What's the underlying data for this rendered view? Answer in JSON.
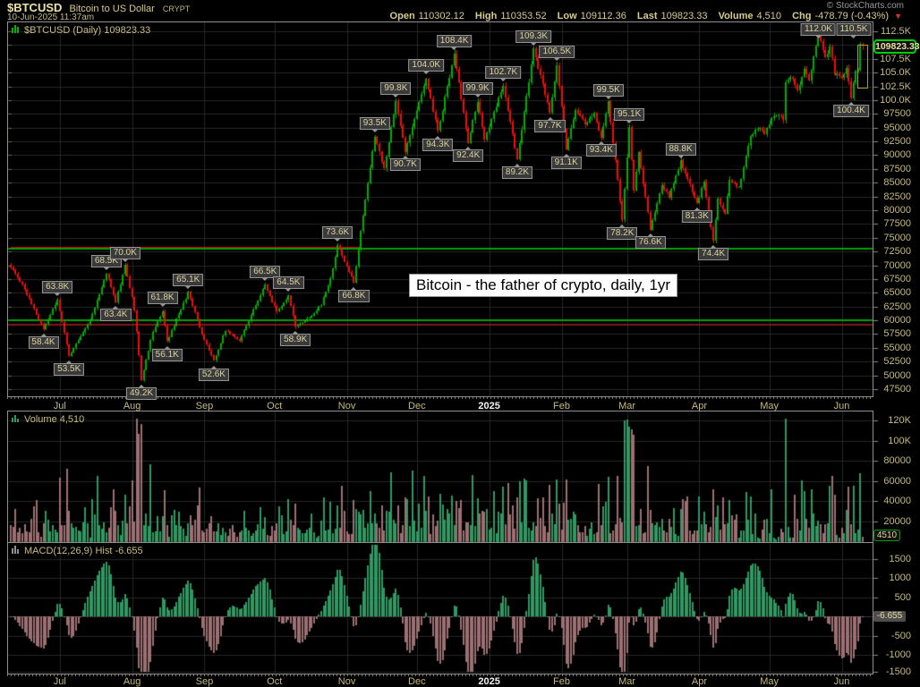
{
  "header": {
    "ticker": "$BTCUSD",
    "name": "Bitcoin to US Dollar",
    "exchange": "CRYPT",
    "copyright": "© StockCharts.com",
    "datetime": "10-Jun-2025 11:37am",
    "quote": {
      "open_label": "Open",
      "open": "110302.12",
      "high_label": "High",
      "high": "110353.52",
      "low_label": "Low",
      "low": "109112.36",
      "last_label": "Last",
      "last": "109823.33",
      "volume_label": "Volume",
      "volume": "4,510",
      "chg_label": "Chg",
      "chg": "-478.79 (-0.43%)"
    }
  },
  "main_chart": {
    "title": "$BTCUSD (Daily) 109823.33",
    "annotation": "Bitcoin - the father of crypto, daily, 1yr",
    "last_price_tag": "109823.33"
  },
  "volume_panel": {
    "title": "Volume 4,510",
    "tag": "4510"
  },
  "macd_panel": {
    "title": "MACD(12,26,9) Hist -6.655",
    "tag": "-6.655"
  },
  "colors": {
    "candle_up": "#00AE00",
    "candle_down": "#EF0D0D",
    "vol_up": "#2E9A62",
    "vol_down": "#9C6F72",
    "grid": "#272727",
    "axis_text": "#C6BA7E",
    "hline_green": "#00A200",
    "hline_red": "#D40000",
    "hline_darkred": "#7E1A1A",
    "tag_border_green": "#00CE00"
  },
  "chart_data": {
    "type": "candlestick",
    "symbol": "$BTCUSD",
    "period": "Daily",
    "range": "1yr",
    "panels": [
      "price",
      "volume",
      "macd_histogram"
    ],
    "price_axis": {
      "min": 47500,
      "max": 112500,
      "tick": 2500,
      "labels": [
        "112.5K",
        "110.0K",
        "107.5K",
        "105.0K",
        "102.5K",
        "100.0K",
        "97500",
        "95000",
        "92500",
        "90000",
        "87500",
        "85000",
        "82500",
        "80000",
        "77500",
        "75000",
        "72500",
        "70000",
        "67500",
        "65000",
        "62500",
        "60000",
        "57500",
        "55000",
        "52500",
        "50000",
        "47500"
      ]
    },
    "months": [
      {
        "label": "Jul",
        "day": 21
      },
      {
        "label": "Aug",
        "day": 52
      },
      {
        "label": "Sep",
        "day": 83
      },
      {
        "label": "Oct",
        "day": 113
      },
      {
        "label": "Nov",
        "day": 144
      },
      {
        "label": "Dec",
        "day": 174
      },
      {
        "label": "2025",
        "day": 205,
        "bright": true
      },
      {
        "label": "Feb",
        "day": 236
      },
      {
        "label": "Mar",
        "day": 264
      },
      {
        "label": "Apr",
        "day": 295
      },
      {
        "label": "May",
        "day": 325
      },
      {
        "label": "Jun",
        "day": 356
      }
    ],
    "price_anchors": [
      [
        0,
        69600
      ],
      [
        5,
        66500
      ],
      [
        14,
        58400
      ],
      [
        20,
        63800
      ],
      [
        25,
        53500
      ],
      [
        34,
        60000
      ],
      [
        41,
        68500
      ],
      [
        45,
        63400
      ],
      [
        49,
        70000
      ],
      [
        53,
        62000
      ],
      [
        56,
        49200
      ],
      [
        61,
        58000
      ],
      [
        65,
        61800
      ],
      [
        67,
        56100
      ],
      [
        76,
        65100
      ],
      [
        82,
        57500
      ],
      [
        87,
        52600
      ],
      [
        92,
        58200
      ],
      [
        98,
        56300
      ],
      [
        109,
        66500
      ],
      [
        114,
        61500
      ],
      [
        119,
        64500
      ],
      [
        122,
        58900
      ],
      [
        128,
        60500
      ],
      [
        133,
        63000
      ],
      [
        137,
        67500
      ],
      [
        140,
        73600
      ],
      [
        147,
        66800
      ],
      [
        150,
        76000
      ],
      [
        156,
        93500
      ],
      [
        160,
        87500
      ],
      [
        165,
        99800
      ],
      [
        169,
        90700
      ],
      [
        178,
        104000
      ],
      [
        183,
        94300
      ],
      [
        190,
        108400
      ],
      [
        196,
        92400
      ],
      [
        200,
        99900
      ],
      [
        203,
        93000
      ],
      [
        211,
        102700
      ],
      [
        217,
        89200
      ],
      [
        224,
        109300
      ],
      [
        231,
        97700
      ],
      [
        234,
        106500
      ],
      [
        238,
        91100
      ],
      [
        242,
        98500
      ],
      [
        246,
        95500
      ],
      [
        250,
        97500
      ],
      [
        253,
        93400
      ],
      [
        256,
        99500
      ],
      [
        262,
        78200
      ],
      [
        265,
        95100
      ],
      [
        267,
        83500
      ],
      [
        269,
        90500
      ],
      [
        274,
        76600
      ],
      [
        279,
        84500
      ],
      [
        282,
        82500
      ],
      [
        287,
        88800
      ],
      [
        294,
        81300
      ],
      [
        297,
        85200
      ],
      [
        301,
        74400
      ],
      [
        303,
        82000
      ],
      [
        306,
        79500
      ],
      [
        308,
        85500
      ],
      [
        312,
        84000
      ],
      [
        317,
        93500
      ],
      [
        320,
        95000
      ],
      [
        323,
        94000
      ],
      [
        326,
        96800
      ],
      [
        329,
        97000
      ],
      [
        331,
        96500
      ],
      [
        332,
        103300
      ],
      [
        335,
        104100
      ],
      [
        337,
        101800
      ],
      [
        340,
        105500
      ],
      [
        342,
        103500
      ],
      [
        346,
        112000
      ],
      [
        349,
        107500
      ],
      [
        351,
        109700
      ],
      [
        353,
        104800
      ],
      [
        356,
        104200
      ],
      [
        358,
        105800
      ],
      [
        360,
        100400
      ],
      [
        362,
        105500
      ],
      [
        363,
        105300
      ],
      [
        364,
        110300
      ],
      [
        365,
        109823
      ]
    ],
    "callouts": [
      {
        "text": "58.4K",
        "day": 14,
        "price": 58400,
        "dir": "below"
      },
      {
        "text": "53.5K",
        "day": 25,
        "price": 53500,
        "dir": "below"
      },
      {
        "text": "63.8K",
        "day": 20,
        "price": 63800,
        "dir": "above"
      },
      {
        "text": "68.5K",
        "day": 41,
        "price": 68500,
        "dir": "above"
      },
      {
        "text": "63.4K",
        "day": 45,
        "price": 63400,
        "dir": "below"
      },
      {
        "text": "70.0K",
        "day": 49,
        "price": 70000,
        "dir": "above"
      },
      {
        "text": "49.2K",
        "day": 56,
        "price": 49200,
        "dir": "below"
      },
      {
        "text": "61.8K",
        "day": 65,
        "price": 61800,
        "dir": "above"
      },
      {
        "text": "56.1K",
        "day": 67,
        "price": 56100,
        "dir": "below"
      },
      {
        "text": "65.1K",
        "day": 76,
        "price": 65100,
        "dir": "above"
      },
      {
        "text": "52.6K",
        "day": 87,
        "price": 52600,
        "dir": "below"
      },
      {
        "text": "66.5K",
        "day": 109,
        "price": 66500,
        "dir": "above"
      },
      {
        "text": "64.5K",
        "day": 119,
        "price": 64500,
        "dir": "above"
      },
      {
        "text": "58.9K",
        "day": 122,
        "price": 58900,
        "dir": "below"
      },
      {
        "text": "73.6K",
        "day": 140,
        "price": 73600,
        "dir": "above"
      },
      {
        "text": "66.8K",
        "day": 147,
        "price": 66800,
        "dir": "below"
      },
      {
        "text": "93.5K",
        "day": 156,
        "price": 93500,
        "dir": "above"
      },
      {
        "text": "99.8K",
        "day": 165,
        "price": 99800,
        "dir": "above"
      },
      {
        "text": "90.7K",
        "day": 169,
        "price": 90700,
        "dir": "below"
      },
      {
        "text": "104.0K",
        "day": 178,
        "price": 104000,
        "dir": "above"
      },
      {
        "text": "94.3K",
        "day": 183,
        "price": 94300,
        "dir": "below"
      },
      {
        "text": "108.4K",
        "day": 190,
        "price": 108400,
        "dir": "above"
      },
      {
        "text": "92.4K",
        "day": 196,
        "price": 92400,
        "dir": "below"
      },
      {
        "text": "99.9K",
        "day": 200,
        "price": 99900,
        "dir": "above"
      },
      {
        "text": "102.7K",
        "day": 211,
        "price": 102700,
        "dir": "above"
      },
      {
        "text": "89.2K",
        "day": 217,
        "price": 89200,
        "dir": "below"
      },
      {
        "text": "109.3K",
        "day": 224,
        "price": 109300,
        "dir": "above"
      },
      {
        "text": "97.7K",
        "day": 231,
        "price": 97700,
        "dir": "below"
      },
      {
        "text": "106.5K",
        "day": 234,
        "price": 106500,
        "dir": "above"
      },
      {
        "text": "91.1K",
        "day": 238,
        "price": 91100,
        "dir": "below"
      },
      {
        "text": "93.4K",
        "day": 253,
        "price": 93400,
        "dir": "below"
      },
      {
        "text": "99.5K",
        "day": 256,
        "price": 99500,
        "dir": "above"
      },
      {
        "text": "78.2K",
        "day": 262,
        "price": 78200,
        "dir": "below"
      },
      {
        "text": "95.1K",
        "day": 265,
        "price": 95100,
        "dir": "above"
      },
      {
        "text": "76.6K",
        "day": 274,
        "price": 76600,
        "dir": "below"
      },
      {
        "text": "88.8K",
        "day": 287,
        "price": 88800,
        "dir": "above"
      },
      {
        "text": "81.3K",
        "day": 294,
        "price": 81300,
        "dir": "below"
      },
      {
        "text": "74.4K",
        "day": 301,
        "price": 74400,
        "dir": "below"
      },
      {
        "text": "112.0K",
        "day": 346,
        "price": 112000,
        "dir": "above"
      },
      {
        "text": "100.4K",
        "day": 360,
        "price": 100400,
        "dir": "below"
      },
      {
        "text": "110.5K",
        "day": 364,
        "price": 110500,
        "dir": "above"
      }
    ],
    "hlines": [
      {
        "price": 73400,
        "color": "#D40000",
        "d1": 0,
        "d2": 150,
        "thick": 2
      },
      {
        "price": 73100,
        "color": "#00A200",
        "thick": 2
      },
      {
        "price": 60100,
        "color": "#00A200",
        "thick": 2
      },
      {
        "price": 59400,
        "color": "#7E1A1A",
        "thick": 2
      }
    ],
    "volume_axis": {
      "labels": [
        {
          "v": 120000,
          "text": "120K"
        },
        {
          "v": 100000,
          "text": "100K"
        },
        {
          "v": 80000,
          "text": "80000"
        },
        {
          "v": 60000,
          "text": "60000"
        },
        {
          "v": 40000,
          "text": "40000"
        },
        {
          "v": 20000,
          "text": "20000"
        }
      ],
      "last_value_tag": "4510"
    },
    "macd_axis": {
      "labels": [
        {
          "v": 1500,
          "text": "1500"
        },
        {
          "v": 1000,
          "text": "1000"
        },
        {
          "v": 500,
          "text": "500"
        },
        {
          "v": -500,
          "text": "-500"
        },
        {
          "v": -1000,
          "text": "-1000"
        },
        {
          "v": -1500,
          "text": "-1500"
        }
      ],
      "last_value_tag": "-6.655"
    },
    "last": {
      "open": 110302.12,
      "high": 110353.52,
      "low": 109112.36,
      "close": 109823.33,
      "volume": 4510,
      "macd_hist": -6.655
    }
  }
}
